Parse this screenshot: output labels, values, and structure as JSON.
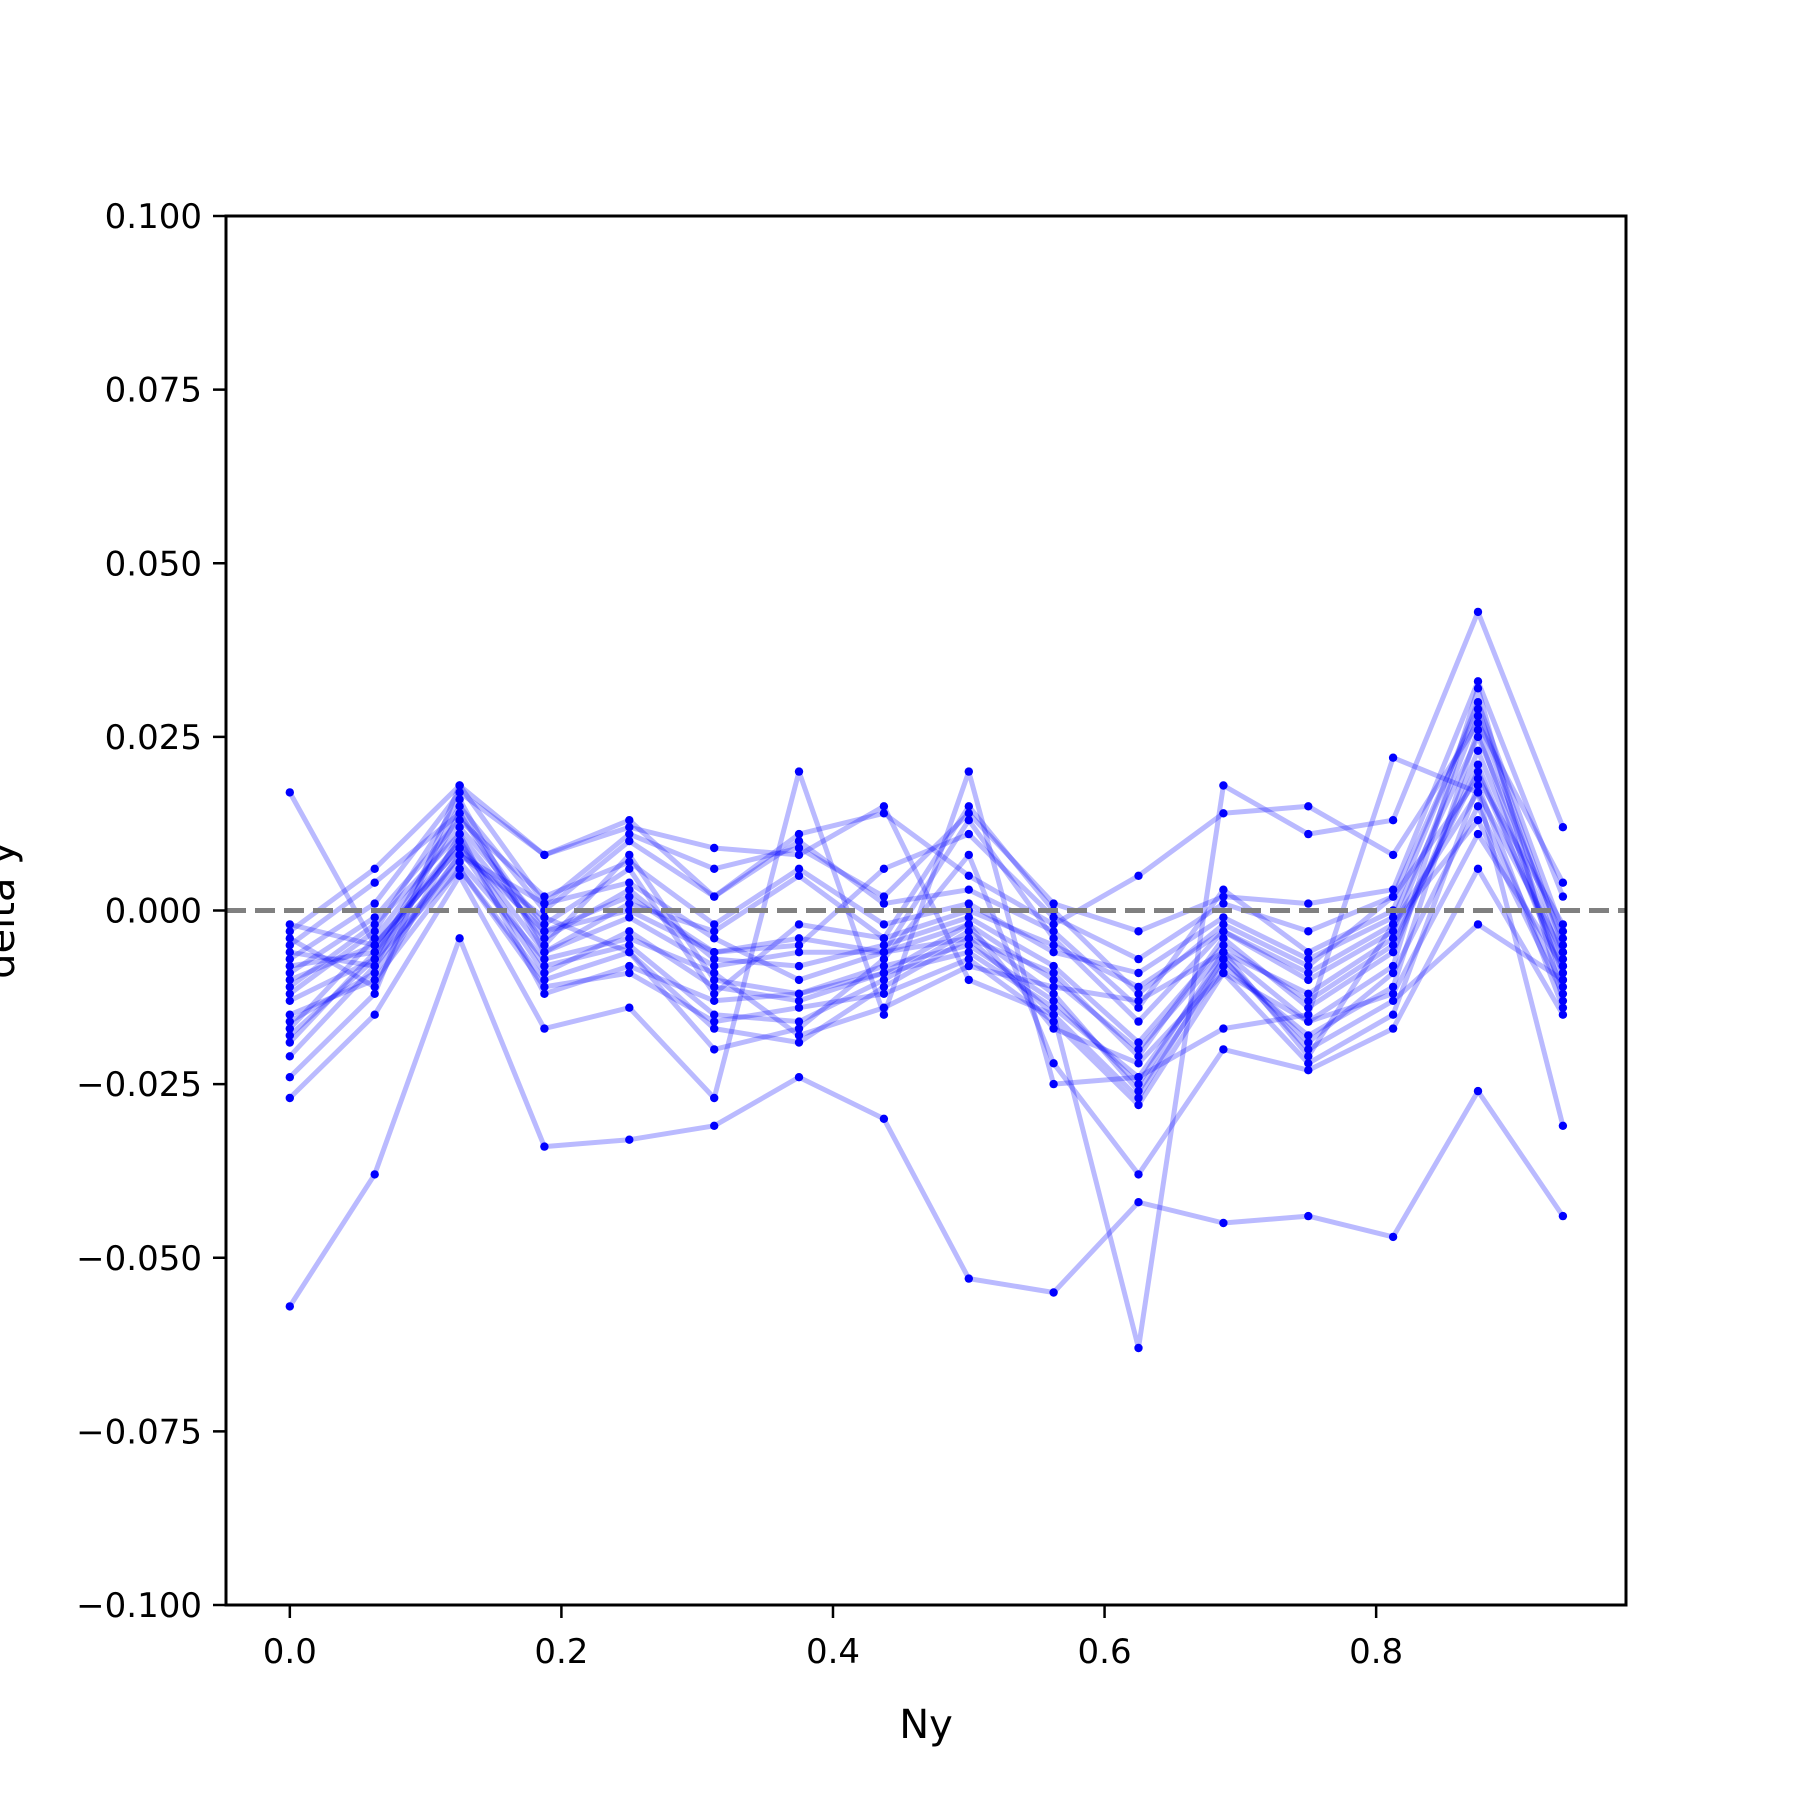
{
  "chart_data": {
    "type": "line",
    "xlabel": "Ny",
    "ylabel": "delta y",
    "xlim": [
      -0.047,
      0.984
    ],
    "ylim": [
      -0.1,
      0.1
    ],
    "x_ticks": [
      {
        "value": 0.0,
        "label": "0.0"
      },
      {
        "value": 0.2,
        "label": "0.2"
      },
      {
        "value": 0.4,
        "label": "0.4"
      },
      {
        "value": 0.6,
        "label": "0.6"
      },
      {
        "value": 0.8,
        "label": "0.8"
      }
    ],
    "y_ticks": [
      {
        "value": 0.1,
        "label": "0.100"
      },
      {
        "value": 0.075,
        "label": "0.075"
      },
      {
        "value": 0.05,
        "label": "0.050"
      },
      {
        "value": 0.025,
        "label": "0.025"
      },
      {
        "value": 0.0,
        "label": "0.000"
      },
      {
        "value": -0.025,
        "label": "−0.025"
      },
      {
        "value": -0.05,
        "label": "−0.050"
      },
      {
        "value": -0.075,
        "label": "−0.075"
      },
      {
        "value": -0.1,
        "label": "−0.100"
      }
    ],
    "reference_line": {
      "y": 0.0,
      "style": "dashed",
      "color": "#808080"
    },
    "series_color": "#0000ff",
    "x": [
      0.0,
      0.0625,
      0.125,
      0.1875,
      0.25,
      0.3125,
      0.375,
      0.4375,
      0.5,
      0.5625,
      0.625,
      0.6875,
      0.75,
      0.8125,
      0.875,
      0.9375
    ],
    "series": [
      {
        "values": [
          0.017,
          -0.005,
          0.009,
          -0.003,
          0.002,
          -0.006,
          -0.004,
          -0.006,
          -0.002,
          -0.01,
          -0.02,
          -0.006,
          -0.012,
          -0.004,
          0.02,
          -0.008
        ]
      },
      {
        "values": [
          -0.057,
          -0.038,
          -0.004,
          -0.034,
          -0.033,
          -0.031,
          -0.024,
          -0.03,
          -0.053,
          -0.055,
          -0.042,
          -0.045,
          -0.044,
          -0.047,
          -0.026,
          -0.044
        ]
      },
      {
        "values": [
          -0.027,
          -0.015,
          0.005,
          -0.017,
          -0.014,
          -0.027,
          0.02,
          -0.015,
          0.02,
          -0.025,
          -0.024,
          -0.017,
          -0.015,
          0.022,
          0.017,
          -0.031
        ]
      },
      {
        "values": [
          -0.024,
          -0.012,
          0.018,
          0.008,
          0.012,
          0.009,
          0.008,
          0.015,
          -0.01,
          -0.015,
          -0.063,
          0.018,
          0.011,
          0.013,
          0.043,
          0.012
        ]
      },
      {
        "values": [
          -0.021,
          -0.008,
          0.014,
          -0.005,
          0.008,
          -0.01,
          -0.012,
          -0.008,
          -0.005,
          -0.013,
          -0.025,
          -0.006,
          -0.016,
          -0.008,
          0.032,
          -0.013
        ]
      },
      {
        "values": [
          -0.019,
          -0.006,
          0.01,
          -0.008,
          -0.005,
          -0.015,
          -0.016,
          -0.01,
          -0.003,
          -0.012,
          -0.026,
          -0.008,
          -0.018,
          -0.011,
          0.026,
          -0.01
        ]
      },
      {
        "values": [
          -0.017,
          -0.004,
          0.012,
          -0.002,
          0.006,
          -0.012,
          -0.002,
          -0.004,
          0.015,
          0.0,
          -0.012,
          -0.002,
          -0.008,
          0.002,
          0.029,
          -0.005
        ]
      },
      {
        "values": [
          -0.016,
          -0.009,
          0.008,
          0.001,
          0.004,
          -0.004,
          -0.01,
          -0.006,
          -0.004,
          -0.009,
          -0.021,
          -0.004,
          -0.014,
          -0.006,
          0.023,
          -0.007
        ]
      },
      {
        "values": [
          -0.015,
          -0.01,
          0.006,
          -0.011,
          -0.009,
          -0.016,
          -0.014,
          -0.012,
          -0.007,
          -0.016,
          -0.028,
          -0.009,
          -0.022,
          -0.015,
          0.018,
          -0.014
        ]
      },
      {
        "values": [
          -0.013,
          -0.007,
          0.015,
          0.0,
          0.01,
          0.002,
          0.01,
          0.001,
          0.003,
          -0.003,
          -0.014,
          0.003,
          -0.006,
          0.0,
          0.03,
          -0.003
        ]
      },
      {
        "values": [
          -0.012,
          -0.003,
          0.016,
          -0.006,
          -0.001,
          -0.008,
          -0.006,
          -0.006,
          0.013,
          -0.004,
          -0.016,
          -0.003,
          -0.01,
          -0.003,
          0.028,
          -0.006
        ]
      },
      {
        "values": [
          -0.011,
          -0.002,
          0.011,
          -0.004,
          0.003,
          -0.007,
          -0.008,
          -0.005,
          -0.001,
          -0.008,
          -0.019,
          -0.005,
          -0.013,
          -0.005,
          0.021,
          -0.009
        ]
      },
      {
        "values": [
          -0.01,
          -0.005,
          0.009,
          -0.009,
          -0.003,
          -0.011,
          -0.013,
          -0.009,
          -0.006,
          -0.014,
          -0.024,
          -0.007,
          -0.019,
          -0.009,
          0.015,
          -0.011
        ]
      },
      {
        "values": [
          -0.009,
          -0.001,
          0.013,
          0.002,
          0.007,
          -0.002,
          0.006,
          -0.002,
          0.001,
          -0.006,
          -0.009,
          -0.001,
          -0.007,
          -0.001,
          0.025,
          -0.004
        ]
      },
      {
        "values": [
          -0.008,
          -0.006,
          0.007,
          -0.007,
          -0.004,
          -0.009,
          -0.018,
          -0.014,
          -0.008,
          -0.011,
          -0.013,
          -0.006,
          -0.021,
          -0.002,
          0.013,
          -0.012
        ]
      },
      {
        "values": [
          -0.007,
          0.001,
          0.017,
          0.008,
          0.013,
          0.002,
          0.011,
          0.014,
          0.005,
          -0.002,
          0.005,
          0.014,
          0.015,
          0.008,
          0.027,
          0.004
        ]
      },
      {
        "values": [
          -0.006,
          -0.008,
          0.008,
          -0.001,
          -0.006,
          -0.02,
          -0.017,
          -0.007,
          0.008,
          -0.022,
          -0.038,
          -0.02,
          -0.023,
          -0.017,
          0.006,
          -0.015
        ]
      },
      {
        "values": [
          -0.005,
          0.004,
          0.014,
          -0.003,
          0.0,
          -0.006,
          -0.005,
          0.006,
          0.011,
          -0.001,
          -0.007,
          0.001,
          -0.003,
          0.002,
          0.019,
          -0.002
        ]
      },
      {
        "values": [
          -0.004,
          -0.011,
          0.011,
          -0.012,
          -0.008,
          -0.013,
          -0.012,
          -0.009,
          -0.002,
          -0.017,
          -0.022,
          -0.009,
          -0.016,
          -0.012,
          0.011,
          -0.008
        ]
      },
      {
        "values": [
          -0.003,
          0.006,
          0.018,
          0.001,
          0.011,
          0.006,
          0.009,
          0.002,
          0.014,
          0.001,
          -0.003,
          0.002,
          0.001,
          0.003,
          0.033,
          0.002
        ]
      },
      {
        "values": [
          -0.002,
          -0.005,
          0.01,
          -0.006,
          0.001,
          -0.003,
          0.005,
          -0.004,
          0.0,
          -0.005,
          -0.011,
          -0.003,
          -0.009,
          -0.002,
          0.017,
          -0.006
        ]
      },
      {
        "values": [
          -0.018,
          -0.007,
          0.006,
          -0.01,
          -0.006,
          -0.017,
          -0.019,
          -0.011,
          -0.004,
          -0.015,
          -0.027,
          -0.007,
          -0.02,
          -0.013,
          -0.002,
          -0.01
        ]
      }
    ]
  }
}
